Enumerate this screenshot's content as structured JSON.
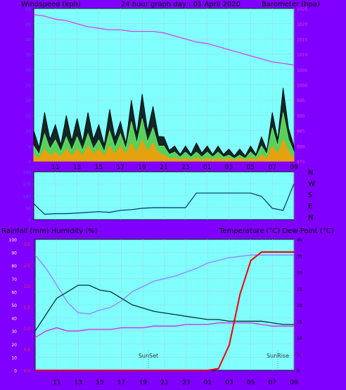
{
  "page": {
    "title": "24 hour graph day : 01 April 2020",
    "colors": {
      "frame": "#8000ff",
      "plot": "#80ffff",
      "text": "#000000",
      "grid": "#9fd6d6"
    }
  },
  "chart_data": [
    {
      "type": "line",
      "ylabel_left": "Windspeed (kph)",
      "ylabel_right": "Barometer (hpa)",
      "xticks": [
        "11",
        "13",
        "15",
        "17",
        "19",
        "21",
        "23",
        "01",
        "03",
        "05",
        "07",
        "09"
      ],
      "ylim_left": [
        0,
        50
      ],
      "yticks_left": [
        "0",
        "5",
        "10",
        "15",
        "20",
        "25",
        "30",
        "35",
        "40",
        "45",
        "50"
      ],
      "ylim_right": [
        975,
        1025
      ],
      "yticks_right": [
        "975",
        "980",
        "985",
        "990",
        "995",
        "1000",
        "1005",
        "1010",
        "1015",
        "1020",
        "1025"
      ],
      "x_hours": [
        9,
        10,
        11,
        12,
        13,
        14,
        15,
        16,
        17,
        18,
        19,
        20,
        21,
        22,
        23,
        24,
        25,
        26,
        27,
        28,
        29,
        30,
        31,
        32,
        33
      ],
      "series": [
        {
          "name": "gust",
          "color": "#000000",
          "values": [
            10,
            16,
            12,
            15,
            14,
            16,
            12,
            17,
            13,
            20,
            22,
            18,
            8,
            5,
            5,
            6,
            5,
            5,
            4,
            4,
            5,
            8,
            16,
            24,
            5
          ]
        },
        {
          "name": "wind",
          "color": "#66ee66",
          "values": [
            5,
            9,
            7,
            8,
            8,
            9,
            7,
            10,
            9,
            13,
            14,
            11,
            5,
            3,
            3,
            3,
            3,
            3,
            2,
            2,
            3,
            5,
            11,
            16,
            3
          ]
        },
        {
          "name": "avg",
          "color": "#ff9900",
          "values": [
            2,
            4,
            3,
            4,
            4,
            5,
            4,
            5,
            5,
            6,
            7,
            6,
            2,
            1,
            1,
            1,
            1,
            1,
            1,
            1,
            1,
            2,
            5,
            7,
            1
          ]
        },
        {
          "name": "barometer",
          "color": "#dd44dd",
          "values": [
            1023,
            1022.5,
            1021.5,
            1021,
            1020,
            1019,
            1018.5,
            1018,
            1018,
            1017.5,
            1017.5,
            1017.5,
            1017,
            1016,
            1015,
            1014,
            1013.5,
            1012.5,
            1011.5,
            1010.5,
            1009.5,
            1008.5,
            1007.5,
            1007,
            1006.5
          ]
        }
      ]
    },
    {
      "type": "line",
      "ylabels_right": [
        "N",
        "W",
        "S",
        "E",
        "N"
      ],
      "yticks_left": [
        "360",
        "270",
        "180",
        "90",
        "0"
      ],
      "ylim": [
        0,
        360
      ],
      "x_hours": [
        9,
        10,
        11,
        12,
        13,
        14,
        15,
        16,
        17,
        18,
        19,
        20,
        21,
        22,
        23,
        24,
        25,
        26,
        27,
        28,
        29,
        30,
        31,
        32,
        33
      ],
      "series": [
        {
          "name": "direction",
          "color": "#003366",
          "values": [
            120,
            40,
            45,
            45,
            50,
            55,
            60,
            55,
            70,
            75,
            85,
            90,
            90,
            90,
            90,
            200,
            200,
            200,
            200,
            200,
            200,
            175,
            85,
            70,
            270
          ]
        }
      ]
    },
    {
      "type": "line",
      "ylabel_left": "Rainfall (mm)  Humidity (%)",
      "ylabel_right": "Temperature (°C) Dew Point (°C)",
      "xticks": [
        "11",
        "13",
        "15",
        "17",
        "19",
        "21",
        "23",
        "01",
        "03",
        "05",
        "07",
        "09"
      ],
      "yticks_humidity": [
        "0",
        "10",
        "20",
        "30",
        "40",
        "50",
        "60",
        "70",
        "80",
        "90",
        "100"
      ],
      "yticks_rain": [
        "0.0",
        "0.5",
        "1.0",
        "1.5",
        "2.0",
        "2.5",
        "3.0"
      ],
      "yticks_temp": [
        "0",
        "5",
        "10",
        "15",
        "20",
        "25",
        "30",
        "35",
        "40"
      ],
      "annotations": [
        {
          "label": "SunSet",
          "x_hour": 19.5
        },
        {
          "label": "SunRise",
          "x_hour": 31.5
        }
      ],
      "x_hours": [
        9,
        10,
        11,
        12,
        13,
        14,
        15,
        16,
        17,
        18,
        19,
        20,
        21,
        22,
        23,
        24,
        25,
        26,
        27,
        28,
        29,
        30,
        31,
        32,
        33
      ],
      "series": [
        {
          "name": "humidity",
          "color": "#9a80ff",
          "axis": "humidity",
          "values": [
            88,
            78,
            65,
            52,
            44,
            43,
            46,
            48,
            53,
            60,
            64,
            68,
            70,
            72,
            75,
            78,
            82,
            84,
            86,
            87,
            88,
            88,
            88,
            88,
            88
          ]
        },
        {
          "name": "temperature",
          "color": "#003333",
          "axis": "temp",
          "values": [
            12,
            17,
            22,
            24,
            26,
            26,
            24.5,
            24,
            22,
            20,
            19,
            18,
            17.5,
            17,
            16.5,
            16,
            15.5,
            15.5,
            15,
            15,
            15,
            15,
            14.5,
            14,
            14
          ]
        },
        {
          "name": "dewpoint",
          "color": "#dd22dd",
          "axis": "temp",
          "values": [
            10,
            12,
            13,
            12,
            12,
            12.5,
            12.5,
            12.5,
            13,
            13,
            13,
            13.5,
            13.5,
            13.5,
            14,
            14,
            14,
            14.5,
            14.5,
            14.5,
            14.5,
            14,
            13.5,
            13.5,
            13.5
          ]
        },
        {
          "name": "rainfall",
          "color": "#ee0000",
          "axis": "rain",
          "values": [
            0,
            0,
            0,
            0,
            0,
            0,
            0,
            0,
            0,
            0,
            0,
            0,
            0,
            0,
            0,
            0,
            0,
            0.04,
            0.6,
            1.8,
            2.6,
            2.8,
            2.8,
            2.8,
            2.8
          ]
        }
      ]
    }
  ]
}
